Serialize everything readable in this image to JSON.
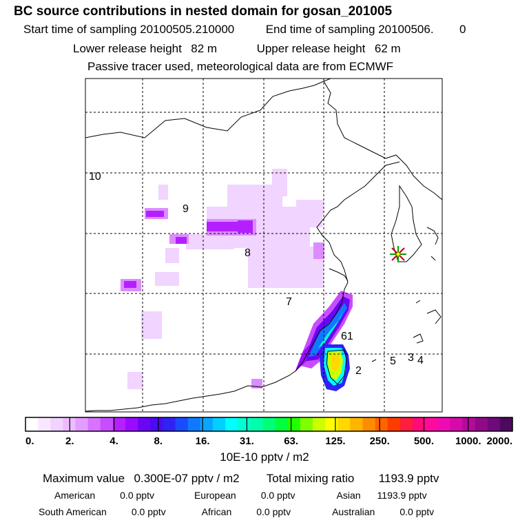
{
  "header": {
    "title": "BC  source contributions in nested domain for gosan_201005",
    "start_label": "Start time of sampling",
    "start_value": "20100505.210000",
    "end_label": "End time of sampling",
    "end_value": "20100506.",
    "end_suffix": "0",
    "lower_label": "Lower release height",
    "lower_value": "82 m",
    "upper_label": "Upper release height",
    "upper_value": "62 m",
    "tracer_line": "Passive tracer used, meteorological data are from ECMWF"
  },
  "chart_data": {
    "type": "heatmap",
    "title": "BC  source contributions in nested domain for gosan_201005",
    "colorbar_label": "10E-10 pptv / m2",
    "colorbar_ticks": [
      "0.",
      "2.",
      "4.",
      "8.",
      "16.",
      "31.",
      "63.",
      "125.",
      "250.",
      "500.",
      "1000.",
      "2000."
    ],
    "colorbar_colors": [
      "#ffffff",
      "#f8e8ff",
      "#f2d2ff",
      "#ecbcff",
      "#e39cff",
      "#d773ff",
      "#c74dff",
      "#b61fff",
      "#9a0bff",
      "#6a06f5",
      "#4a0cf0",
      "#3022f2",
      "#1a4bff",
      "#0f79ff",
      "#0aa5ff",
      "#00d0ff",
      "#00ffff",
      "#00ffd2",
      "#00ffaa",
      "#00ff78",
      "#00ff3c",
      "#22ff00",
      "#7fff00",
      "#ccff00",
      "#ffff00",
      "#ffd800",
      "#ffb400",
      "#ff8c00",
      "#ff6400",
      "#ff3c00",
      "#ff1e3c",
      "#ff0a78",
      "#ff0a9c",
      "#f00ab4",
      "#d60aaa",
      "#b40a9a",
      "#900a88",
      "#6e0a7a",
      "#4c0a5c"
    ],
    "receptor_marker": "gosan (star)",
    "grid": true,
    "region_labels": [
      "10",
      "9",
      "8",
      "7",
      "61",
      "2",
      "5",
      "3",
      "4"
    ]
  },
  "summary": {
    "max_label": "Maximum value",
    "max_value": "0.300E-07 pptv / m2",
    "total_label": "Total mixing ratio",
    "total_value": "1193.9 pptv",
    "regions": [
      {
        "name": "American",
        "value": "0.0 pptv"
      },
      {
        "name": "European",
        "value": "0.0 pptv"
      },
      {
        "name": "Asian",
        "value": "1193.9 pptv"
      },
      {
        "name": "South American",
        "value": "0.0 pptv"
      },
      {
        "name": "African",
        "value": "0.0 pptv"
      },
      {
        "name": "Australian",
        "value": "0.0 pptv"
      }
    ]
  }
}
